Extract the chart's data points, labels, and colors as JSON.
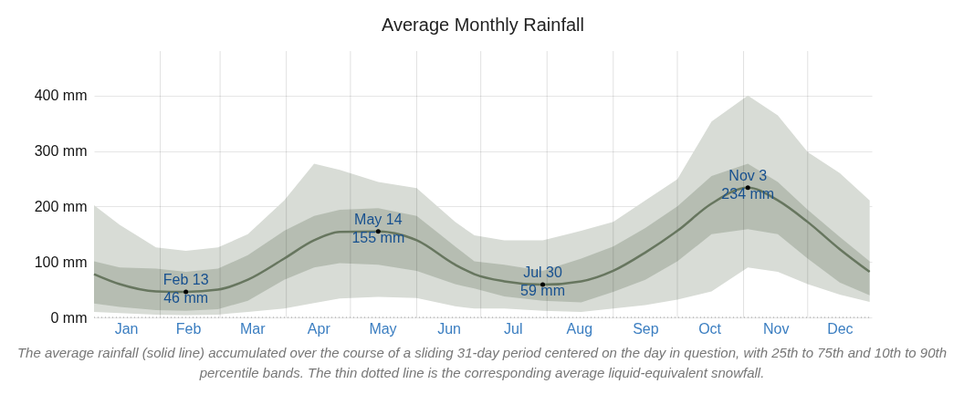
{
  "chart_data": {
    "type": "line",
    "title": "Average Monthly Rainfall",
    "x": [
      "--01-01",
      "--01-13",
      "--01-30",
      "--02-13",
      "--02-28",
      "--03-14",
      "--03-31",
      "--04-14",
      "--04-26",
      "--05-14",
      "--06-01",
      "--06-19",
      "--06-28",
      "--07-12",
      "--07-30",
      "--08-17",
      "--09-01",
      "--09-16",
      "--10-01",
      "--10-17",
      "--11-03",
      "--11-17",
      "--12-01",
      "--12-16",
      "--12-30"
    ],
    "series": [
      {
        "color": "#d8dcd6",
        "values": [
          null,
          null,
          null,
          null,
          null,
          null,
          null,
          null,
          null,
          null,
          null,
          null,
          null,
          null,
          null,
          null,
          null,
          null,
          null,
          null,
          null,
          null,
          null,
          null,
          null
        ],
        "lower": [
          10,
          8,
          5,
          4,
          5,
          10,
          16,
          26,
          34,
          37,
          35,
          20,
          16,
          16,
          12,
          10,
          16,
          22,
          32,
          47,
          90,
          82,
          60,
          41,
          28
        ],
        "upper": [
          202,
          167,
          126,
          120,
          126,
          150,
          211,
          277,
          266,
          244,
          233,
          172,
          148,
          139,
          139,
          156,
          172,
          211,
          249,
          353,
          400,
          364,
          298,
          260,
          211
        ]
      },
      {
        "color": "#67765f",
        "values": [
          78,
          60,
          47,
          46,
          50,
          68,
          106,
          139,
          154,
          155,
          139,
          95,
          78,
          65,
          59,
          65,
          84,
          117,
          156,
          205,
          234,
          211,
          172,
          123,
          82
        ],
        "lower": [
          25,
          19,
          13,
          12,
          15,
          30,
          68,
          90,
          98,
          95,
          84,
          60,
          52,
          38,
          30,
          27,
          46,
          68,
          101,
          150,
          159,
          150,
          106,
          63,
          40
        ],
        "upper": [
          101,
          90,
          88,
          82,
          88,
          112,
          156,
          183,
          194,
          197,
          183,
          128,
          101,
          95,
          84,
          106,
          128,
          161,
          200,
          255,
          277,
          244,
          194,
          145,
          101
        ]
      },
      {
        "color": "#9a9a9a",
        "line_style": "dotted",
        "x": [
          "--01-01",
          "--12-31"
        ],
        "values": [
          0,
          0
        ]
      }
    ],
    "xlim": [
      "--01-01",
      "--12-31"
    ],
    "xticks": [
      {
        "value": "--01-16",
        "label": "Jan"
      },
      {
        "value": "--02-01",
        "label": null
      },
      {
        "value": "--02-14",
        "label": "Feb"
      },
      {
        "value": "--03-01",
        "label": null
      },
      {
        "value": "--03-16",
        "label": "Mar"
      },
      {
        "value": "--04-01",
        "label": null
      },
      {
        "value": "--04-16",
        "label": "Apr"
      },
      {
        "value": "--05-01",
        "label": null
      },
      {
        "value": "--05-16",
        "label": "May"
      },
      {
        "value": "--06-01",
        "label": null
      },
      {
        "value": "--06-16",
        "label": "Jun"
      },
      {
        "value": "--07-01",
        "label": null
      },
      {
        "value": "--07-16",
        "label": "Jul"
      },
      {
        "value": "--08-01",
        "label": null
      },
      {
        "value": "--08-16",
        "label": "Aug"
      },
      {
        "value": "--09-01",
        "label": null
      },
      {
        "value": "--09-16",
        "label": "Sep"
      },
      {
        "value": "--10-01",
        "label": null
      },
      {
        "value": "--10-16",
        "label": "Oct"
      },
      {
        "value": "--11-01",
        "label": null
      },
      {
        "value": "--11-16",
        "label": "Nov"
      },
      {
        "value": "--12-01",
        "label": null
      },
      {
        "value": "--12-16",
        "label": "Dec"
      }
    ],
    "ylim": [
      0,
      480
    ],
    "yticks": [
      {
        "value": 0,
        "label": "0 mm"
      },
      {
        "value": 100,
        "label": "100 mm"
      },
      {
        "value": 200,
        "label": "200 mm"
      },
      {
        "value": 300,
        "label": "300 mm"
      },
      {
        "value": 400,
        "label": "400 mm"
      }
    ],
    "grid": true,
    "annotations": [
      {
        "text": "Feb 13\n46 mm",
        "x": "--02-13",
        "y": 46
      },
      {
        "text": "May 14\n155 mm",
        "x": "--05-14",
        "y": 155
      },
      {
        "text": "Jul 30\n59 mm",
        "x": "--07-30",
        "y": 59
      },
      {
        "text": "Nov 3\n234 mm",
        "x": "--11-03",
        "y": 234
      },
      "The average rainfall (solid line) accumulated over the course of a sliding 31-day period centered on the day in question, with 25th to 75th and 10th to 90th percentile bands. The thin dotted line is the corresponding average liquid-equivalent snowfall."
    ]
  }
}
